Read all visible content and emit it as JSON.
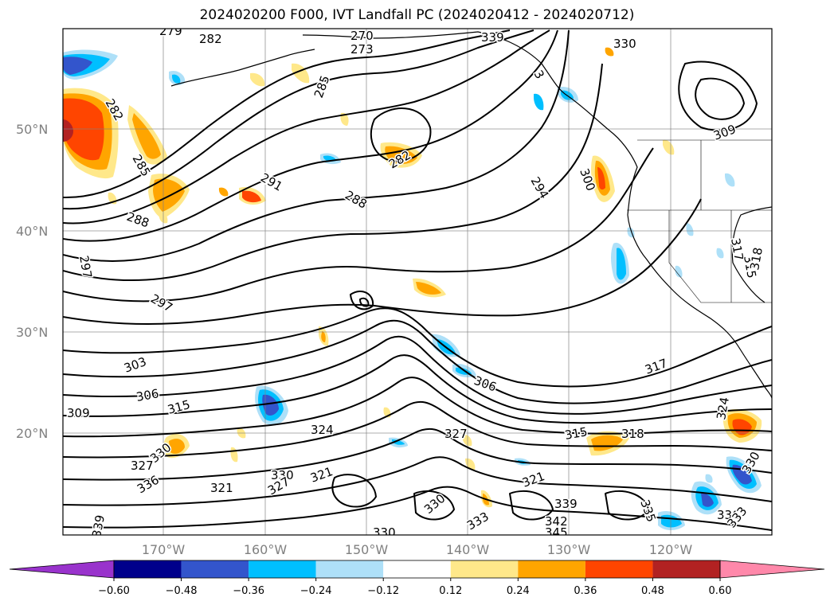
{
  "title": "2024020200 F000, IVT Landfall PC (2024020412 - 2024020712)",
  "lat_labels": [
    "50°N",
    "40°N",
    "30°N",
    "20°N"
  ],
  "lon_labels": [
    "170°W",
    "160°W",
    "150°W",
    "140°W",
    "130°W",
    "120°W"
  ],
  "colorbar": {
    "ticks": [
      "−0.60",
      "−0.48",
      "−0.36",
      "−0.24",
      "−0.12",
      "0.12",
      "0.24",
      "0.36",
      "0.48",
      "0.60"
    ],
    "colors": [
      "#9933cc",
      "#00008b",
      "#3355cc",
      "#00bfff",
      "#aee0f8",
      "#ffffff",
      "#ffe88a",
      "#ffa500",
      "#ff4500",
      "#b22222",
      "#ff88aa"
    ]
  },
  "contour_labels": [
    "279",
    "282",
    "270",
    "273",
    "285",
    "282",
    "291",
    "288",
    "294",
    "300",
    "309",
    "282",
    "285",
    "288",
    "297",
    "297",
    "303",
    "306",
    "309",
    "315",
    "324",
    "327",
    "315",
    "318",
    "317",
    "306",
    "324",
    "321",
    "330",
    "327",
    "321",
    "327",
    "330",
    "336",
    "321",
    "330",
    "339",
    "342",
    "345",
    "330",
    "333",
    "339",
    "336",
    "335",
    "317",
    "315",
    "318",
    "330",
    "333",
    "3",
    "330",
    "339"
  ],
  "regions": {
    "color_fill_colors": {
      "warm": [
        "#ffe88a",
        "#ffa500",
        "#ff4500"
      ],
      "cool": [
        "#aee0f8",
        "#00bfff",
        "#3355cc"
      ]
    }
  }
}
